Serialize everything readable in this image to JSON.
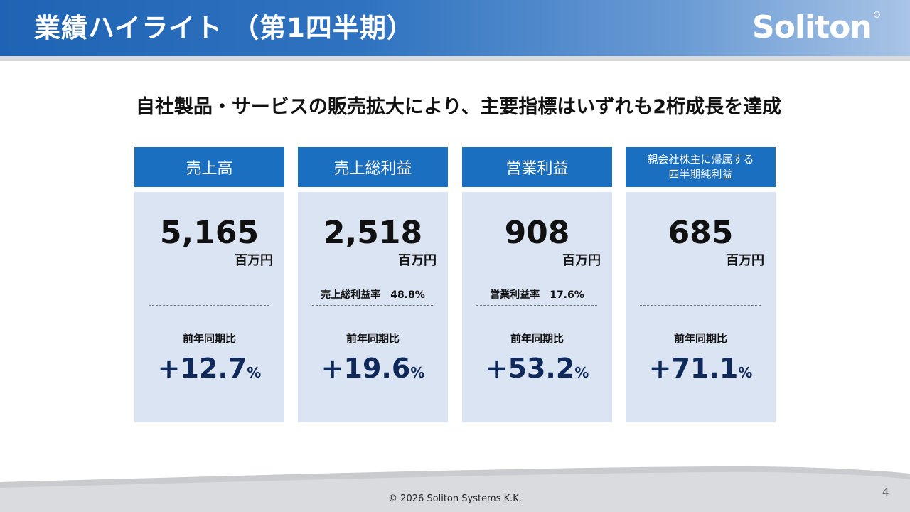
{
  "slide": {
    "title": "業績ハイライト （第1四半期）",
    "logo": "Soliton",
    "headline": "自社製品・サービスの販売拡大により、主要指標はいずれも2桁成長を達成",
    "copyright": "© 2026 Soliton Systems K.K.",
    "page_number": "4"
  },
  "cards": [
    {
      "label": "売上高",
      "value": "5,165",
      "unit": "百万円",
      "ratio": "",
      "yoy_label": "前年同期比",
      "yoy_value": "+12.7",
      "yoy_unit": "%"
    },
    {
      "label": "売上総利益",
      "value": "2,518",
      "unit": "百万円",
      "ratio": "売上総利益率　48.8%",
      "yoy_label": "前年同期比",
      "yoy_value": "+19.6",
      "yoy_unit": "%"
    },
    {
      "label": "営業利益",
      "value": "908",
      "unit": "百万円",
      "ratio": "営業利益率　17.6%",
      "yoy_label": "前年同期比",
      "yoy_value": "+53.2",
      "yoy_unit": "%"
    },
    {
      "label": "親会社株主に帰属する\n四半期純利益",
      "value": "685",
      "unit": "百万円",
      "ratio": "",
      "yoy_label": "前年同期比",
      "yoy_value": "+71.1",
      "yoy_unit": "%"
    }
  ],
  "colors": {
    "header_blue": "#1f63b4",
    "card_head": "#1b6fc0",
    "card_body": "#dbe4f3",
    "yoy_text": "#0f2a5a"
  }
}
